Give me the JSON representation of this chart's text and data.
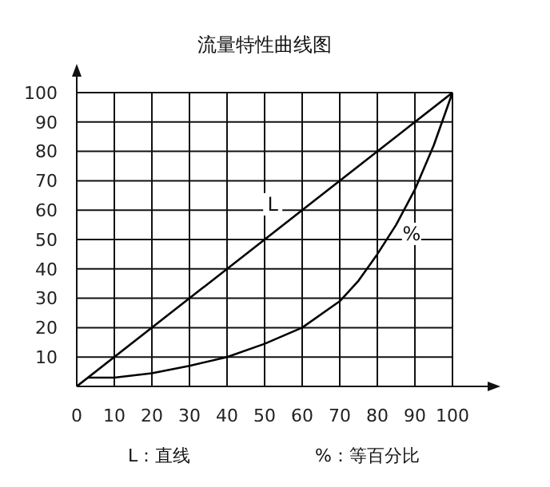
{
  "chart_data": {
    "type": "line",
    "title": "流量特性曲线图",
    "xlim": [
      0,
      100
    ],
    "ylim": [
      0,
      100
    ],
    "xticks": [
      0,
      10,
      20,
      30,
      40,
      50,
      60,
      70,
      80,
      90,
      100
    ],
    "yticks": [
      {
        "value": 0,
        "label": null
      },
      10,
      20,
      30,
      40,
      50,
      60,
      70,
      80,
      90,
      100
    ],
    "grid": true,
    "legend": false,
    "marker": "none",
    "series": [
      {
        "name": "L",
        "color": "#000000",
        "x": [
          0,
          100
        ],
        "values": [
          0,
          100
        ]
      },
      {
        "name": "%",
        "color": "#000000",
        "x": [
          3,
          10,
          20,
          30,
          40,
          50,
          60,
          70,
          75,
          80,
          85,
          90,
          95,
          100
        ],
        "values": [
          3,
          3,
          4.5,
          7,
          10,
          14.5,
          20,
          29,
          36,
          45,
          55,
          67,
          82,
          100
        ]
      }
    ],
    "annotations": [
      "L：直线",
      "%：等百分比"
    ]
  }
}
